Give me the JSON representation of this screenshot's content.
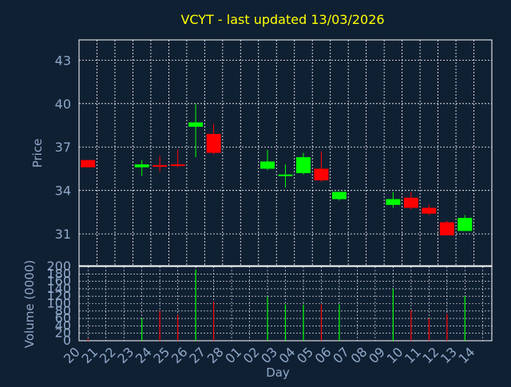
{
  "colors": {
    "background": "#102033",
    "title": "#ffff00",
    "axis_text": "#8fa9c9",
    "frame": "#ffffff",
    "grid": "#ffffff",
    "up": "#00ff00",
    "down": "#ff0000"
  },
  "chart_data": [
    {
      "type": "candlestick",
      "title": "VCYT - last updated 13/03/2026",
      "ylabel": "Price",
      "ylim": [
        28.8,
        44.4
      ],
      "yticks": [
        31,
        34,
        37,
        40,
        43
      ],
      "grid": true,
      "up_color": "#00ff00",
      "down_color": "#ff0000",
      "categories": [
        "20",
        "21",
        "22",
        "23",
        "24",
        "25",
        "26",
        "27",
        "28",
        "01",
        "02",
        "03",
        "04",
        "05",
        "06",
        "07",
        "08",
        "09",
        "10",
        "11",
        "12",
        "13",
        "14"
      ],
      "candles": [
        {
          "x": "20",
          "open": 36.1,
          "high": 36.1,
          "low": 35.6,
          "close": 35.6
        },
        {
          "x": "23",
          "open": 35.6,
          "high": 36.1,
          "low": 35.0,
          "close": 35.8
        },
        {
          "x": "24",
          "open": 35.75,
          "high": 36.4,
          "low": 35.3,
          "close": 35.65
        },
        {
          "x": "25",
          "open": 35.8,
          "high": 36.8,
          "low": 35.6,
          "close": 35.7
        },
        {
          "x": "26",
          "open": 38.4,
          "high": 40.0,
          "low": 36.3,
          "close": 38.7
        },
        {
          "x": "27",
          "open": 37.9,
          "high": 38.6,
          "low": 36.5,
          "close": 36.6
        },
        {
          "x": "02",
          "open": 35.5,
          "high": 36.8,
          "low": 35.4,
          "close": 36.0
        },
        {
          "x": "03",
          "open": 35.0,
          "high": 35.8,
          "low": 34.2,
          "close": 35.1
        },
        {
          "x": "04",
          "open": 35.2,
          "high": 36.6,
          "low": 35.1,
          "close": 36.3
        },
        {
          "x": "05",
          "open": 35.5,
          "high": 36.7,
          "low": 34.6,
          "close": 34.7
        },
        {
          "x": "06",
          "open": 33.4,
          "high": 33.9,
          "low": 33.3,
          "close": 33.9
        },
        {
          "x": "09",
          "open": 33.0,
          "high": 33.9,
          "low": 32.8,
          "close": 33.4
        },
        {
          "x": "10",
          "open": 33.5,
          "high": 33.9,
          "low": 32.7,
          "close": 32.8
        },
        {
          "x": "11",
          "open": 32.8,
          "high": 33.0,
          "low": 32.3,
          "close": 32.4
        },
        {
          "x": "12",
          "open": 31.8,
          "high": 31.9,
          "low": 30.9,
          "close": 30.9
        },
        {
          "x": "13",
          "open": 31.2,
          "high": 32.3,
          "low": 31.2,
          "close": 32.1
        }
      ]
    },
    {
      "type": "bar",
      "ylabel": "Volume (0000)",
      "xlabel": "Day",
      "ylim": [
        0,
        200
      ],
      "yticks": [
        0,
        20,
        40,
        60,
        80,
        100,
        120,
        140,
        160,
        180,
        200
      ],
      "grid": true,
      "categories": [
        "20",
        "21",
        "22",
        "23",
        "24",
        "25",
        "26",
        "27",
        "28",
        "01",
        "02",
        "03",
        "04",
        "05",
        "06",
        "07",
        "08",
        "09",
        "10",
        "11",
        "12",
        "13",
        "14"
      ],
      "bars": [
        {
          "x": "20",
          "value": 5,
          "color": "#ff0000"
        },
        {
          "x": "23",
          "value": 60,
          "color": "#00ff00"
        },
        {
          "x": "24",
          "value": 80,
          "color": "#ff0000"
        },
        {
          "x": "25",
          "value": 70,
          "color": "#ff0000"
        },
        {
          "x": "26",
          "value": 192,
          "color": "#00ff00"
        },
        {
          "x": "27",
          "value": 105,
          "color": "#ff0000"
        },
        {
          "x": "02",
          "value": 118,
          "color": "#00ff00"
        },
        {
          "x": "03",
          "value": 98,
          "color": "#00ff00"
        },
        {
          "x": "04",
          "value": 97,
          "color": "#00ff00"
        },
        {
          "x": "05",
          "value": 98,
          "color": "#ff0000"
        },
        {
          "x": "06",
          "value": 98,
          "color": "#00ff00"
        },
        {
          "x": "09",
          "value": 140,
          "color": "#00ff00"
        },
        {
          "x": "10",
          "value": 82,
          "color": "#ff0000"
        },
        {
          "x": "11",
          "value": 60,
          "color": "#ff0000"
        },
        {
          "x": "12",
          "value": 72,
          "color": "#ff0000"
        },
        {
          "x": "13",
          "value": 120,
          "color": "#00ff00"
        }
      ]
    }
  ]
}
